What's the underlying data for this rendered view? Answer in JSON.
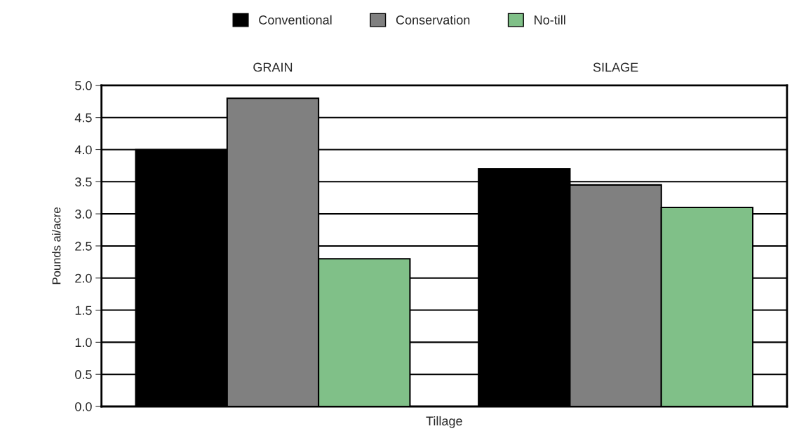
{
  "chart_data": {
    "type": "bar",
    "ylabel": "Pounds ai/acre",
    "xlabel": "Tillage",
    "categories": [
      "GRAIN",
      "SILAGE"
    ],
    "ylim": [
      0,
      5
    ],
    "yticks": [
      {
        "value": 0,
        "label": "0.0"
      },
      0.5,
      {
        "value": 1,
        "label": "1.0"
      },
      1.5,
      {
        "value": 2,
        "label": "2.0"
      },
      2.5,
      {
        "value": 3,
        "label": "3.0"
      },
      3.5,
      {
        "value": 4,
        "label": "4.0"
      },
      4.5,
      {
        "value": 5,
        "label": "5.0"
      }
    ],
    "grid": "y",
    "legend": "top",
    "series": [
      {
        "name": "Conventional",
        "color": "#000000",
        "values": [
          4.0,
          3.7
        ]
      },
      {
        "name": "Conservation",
        "color": "#808080",
        "values": [
          4.8,
          3.45
        ]
      },
      {
        "name": "No-till",
        "color": "#80c088",
        "values": [
          2.3,
          3.1
        ]
      }
    ]
  }
}
